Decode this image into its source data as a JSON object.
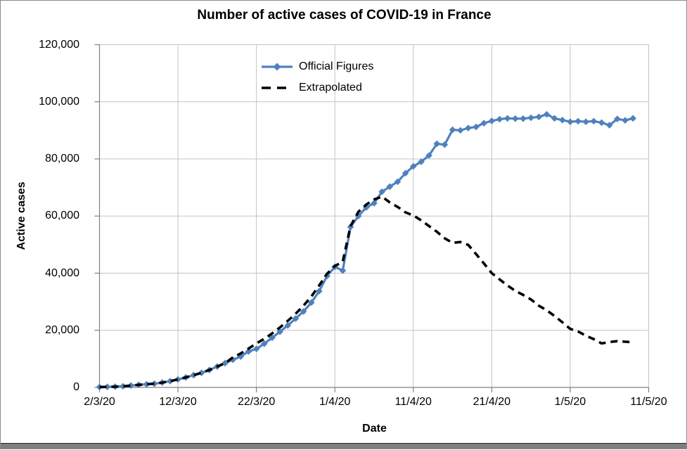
{
  "chart_data": {
    "type": "line",
    "title": "Number of active cases of COVID-19 in France",
    "xlabel": "Date",
    "ylabel": "Active cases",
    "ylim": [
      0,
      120000
    ],
    "x_start_date": "2/3/20",
    "x_interval_days": 1,
    "x_axis_span_days": 70,
    "x_tick_days": [
      0,
      10,
      20,
      30,
      40,
      50,
      60,
      70
    ],
    "x_tick_labels": [
      "2/3/20",
      "12/3/20",
      "22/3/20",
      "1/4/20",
      "11/4/20",
      "21/4/20",
      "1/5/20",
      "11/5/20"
    ],
    "y_tick_values": [
      0,
      20000,
      40000,
      60000,
      80000,
      100000,
      120000
    ],
    "y_tick_labels": [
      "0",
      "20,000",
      "40,000",
      "60,000",
      "80,000",
      "100,000",
      "120,000"
    ],
    "grid": true,
    "legend_position": "inside-top-center",
    "colors": {
      "official": "#4F81BD",
      "extrapolated": "#000000",
      "gridline": "#C3C3C3",
      "axis": "#808080",
      "text": "#000000"
    },
    "series": [
      {
        "name": "Official Figures",
        "style": "solid-diamond",
        "color": "#4F81BD",
        "values": [
          130,
          190,
          280,
          400,
          650,
          900,
          1100,
          1300,
          1700,
          2200,
          2800,
          3500,
          4300,
          5100,
          6100,
          7300,
          8500,
          9700,
          10800,
          12600,
          13500,
          15300,
          17400,
          19500,
          21700,
          24100,
          26600,
          29700,
          33700,
          39000,
          42200,
          40900,
          56200,
          60000,
          63000,
          64500,
          68500,
          70300,
          72000,
          75000,
          77400,
          79000,
          81200,
          85300,
          85000,
          90200,
          90000,
          90800,
          91200,
          92500,
          93300,
          93900,
          94200,
          94100,
          94100,
          94400,
          94700,
          95600,
          94200,
          93600,
          93000,
          93200,
          93000,
          93200,
          92700,
          91800,
          94000,
          93500,
          94200
        ]
      },
      {
        "name": "Extrapolated",
        "style": "dashed",
        "color": "#000000",
        "values": [
          130,
          190,
          280,
          400,
          650,
          900,
          1100,
          1300,
          1700,
          2200,
          2800,
          3500,
          4300,
          5100,
          6100,
          7300,
          8500,
          10500,
          11900,
          13600,
          15400,
          17000,
          18900,
          21000,
          23300,
          25800,
          28600,
          31800,
          35700,
          39800,
          42500,
          44000,
          56500,
          61500,
          64000,
          65800,
          66800,
          64800,
          63200,
          61300,
          60200,
          58500,
          56500,
          54500,
          52200,
          50600,
          50900,
          49900,
          46700,
          43400,
          40000,
          37800,
          35700,
          33800,
          32400,
          30800,
          28600,
          27000,
          25000,
          22800,
          20500,
          19600,
          18100,
          16900,
          15400,
          15900,
          16200,
          16000,
          15800
        ]
      }
    ]
  }
}
